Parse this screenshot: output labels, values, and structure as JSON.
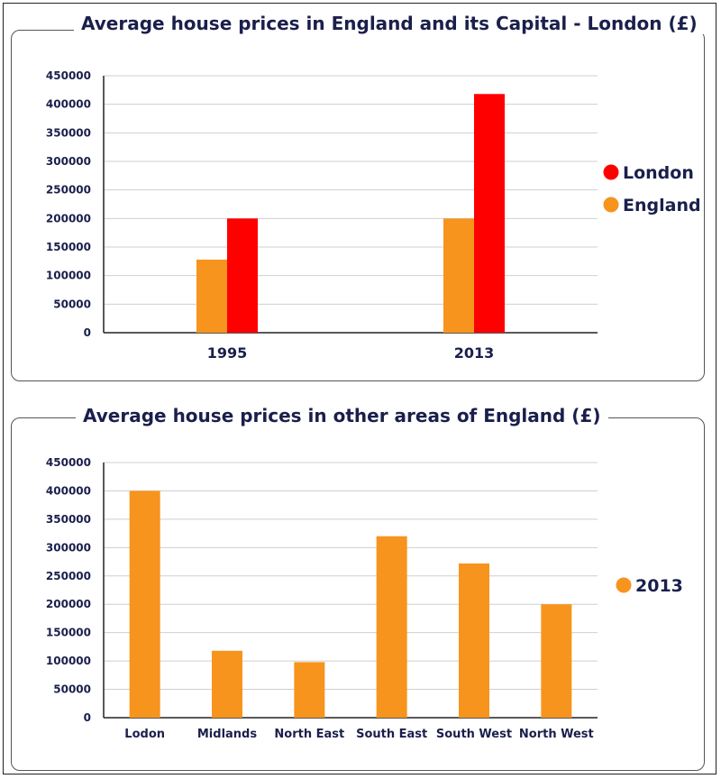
{
  "chart_data": [
    {
      "type": "bar",
      "title": "Average house prices in England and its Capital - London  (£)",
      "categories": [
        "1995",
        "2013"
      ],
      "series": [
        {
          "name": "England",
          "values": [
            128000,
            200000
          ],
          "color": "#f7941d"
        },
        {
          "name": "London",
          "values": [
            200000,
            418000
          ],
          "color": "#ff0000"
        }
      ],
      "yticks": [
        0,
        50000,
        100000,
        150000,
        200000,
        250000,
        300000,
        350000,
        400000,
        450000
      ],
      "ylim": [
        0,
        450000
      ],
      "legend_order": [
        "London",
        "England"
      ],
      "legend_position": "right",
      "grid": true
    },
    {
      "type": "bar",
      "title": "Average house prices in other areas of England (£)",
      "categories": [
        "Lodon",
        "Midlands",
        "North East",
        "South East",
        "South West",
        "North West"
      ],
      "series": [
        {
          "name": "2013",
          "values": [
            400000,
            118000,
            98000,
            320000,
            272000,
            200000
          ],
          "color": "#f7941d"
        }
      ],
      "yticks": [
        0,
        50000,
        100000,
        150000,
        200000,
        250000,
        300000,
        350000,
        400000,
        450000
      ],
      "ylim": [
        0,
        450000
      ],
      "legend_order": [
        "2013"
      ],
      "legend_position": "right",
      "grid": true
    }
  ]
}
